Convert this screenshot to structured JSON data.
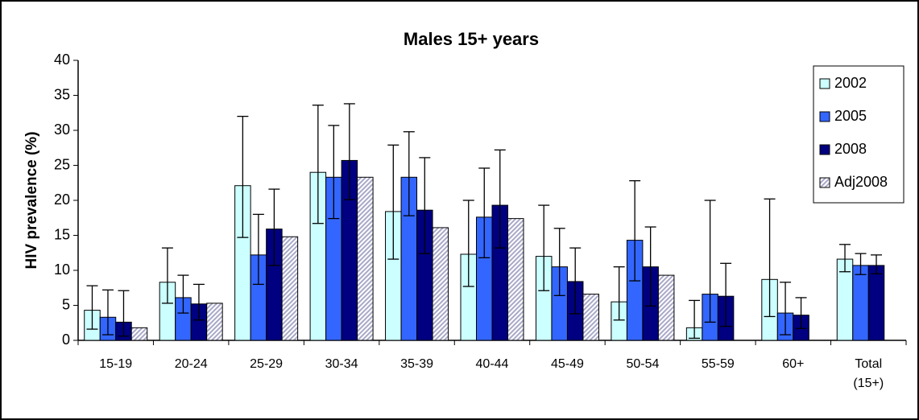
{
  "chart_data": {
    "type": "bar",
    "title": "Males 15+ years",
    "y_label": "HIV prevalence (%)",
    "categories": [
      "15-19",
      "20-24",
      "25-29",
      "30-34",
      "35-39",
      "40-44",
      "45-49",
      "50-54",
      "55-59",
      "60+",
      "Total (15+)"
    ],
    "series": [
      {
        "name": "2002",
        "color": "#ccffff",
        "values": [
          4.3,
          8.3,
          22.1,
          24.0,
          18.4,
          12.3,
          12.0,
          5.5,
          1.8,
          8.7,
          11.6
        ],
        "lower": [
          1.6,
          5.3,
          14.7,
          16.7,
          11.6,
          7.7,
          7.1,
          2.9,
          0.3,
          3.4,
          9.8
        ],
        "upper": [
          7.8,
          13.2,
          32.0,
          33.6,
          27.9,
          20.0,
          19.3,
          10.5,
          5.7,
          20.2,
          13.7
        ]
      },
      {
        "name": "2005",
        "color": "#3366ff",
        "values": [
          3.3,
          6.1,
          12.2,
          23.3,
          23.3,
          17.6,
          10.5,
          14.3,
          6.6,
          3.9,
          10.7
        ],
        "lower": [
          0.8,
          3.9,
          8.0,
          17.4,
          17.8,
          11.8,
          6.4,
          8.5,
          2.6,
          0.8,
          9.4
        ],
        "upper": [
          7.2,
          9.3,
          18.0,
          30.7,
          29.8,
          24.6,
          16.0,
          22.8,
          20.0,
          8.3,
          12.4
        ]
      },
      {
        "name": "2008",
        "color": "#000080",
        "values": [
          2.6,
          5.2,
          15.9,
          25.7,
          18.6,
          19.3,
          8.4,
          10.5,
          6.3,
          3.6,
          10.7
        ],
        "lower": [
          0.6,
          2.9,
          10.7,
          20.1,
          12.4,
          13.2,
          3.8,
          4.9,
          2.0,
          1.7,
          9.5
        ],
        "upper": [
          7.1,
          8.0,
          21.6,
          33.8,
          26.1,
          27.2,
          13.2,
          16.2,
          11.0,
          6.1,
          12.2
        ]
      },
      {
        "name": "Adj2008",
        "color": "#a8a8c8",
        "pattern": "hatch",
        "values": [
          1.8,
          5.3,
          14.8,
          23.3,
          16.1,
          17.4,
          6.6,
          9.3,
          null,
          null,
          null
        ]
      }
    ],
    "ylim": [
      0,
      40
    ],
    "yticks": [
      0,
      5,
      10,
      15,
      20,
      25,
      30,
      35,
      40
    ],
    "legend": "top-right"
  }
}
